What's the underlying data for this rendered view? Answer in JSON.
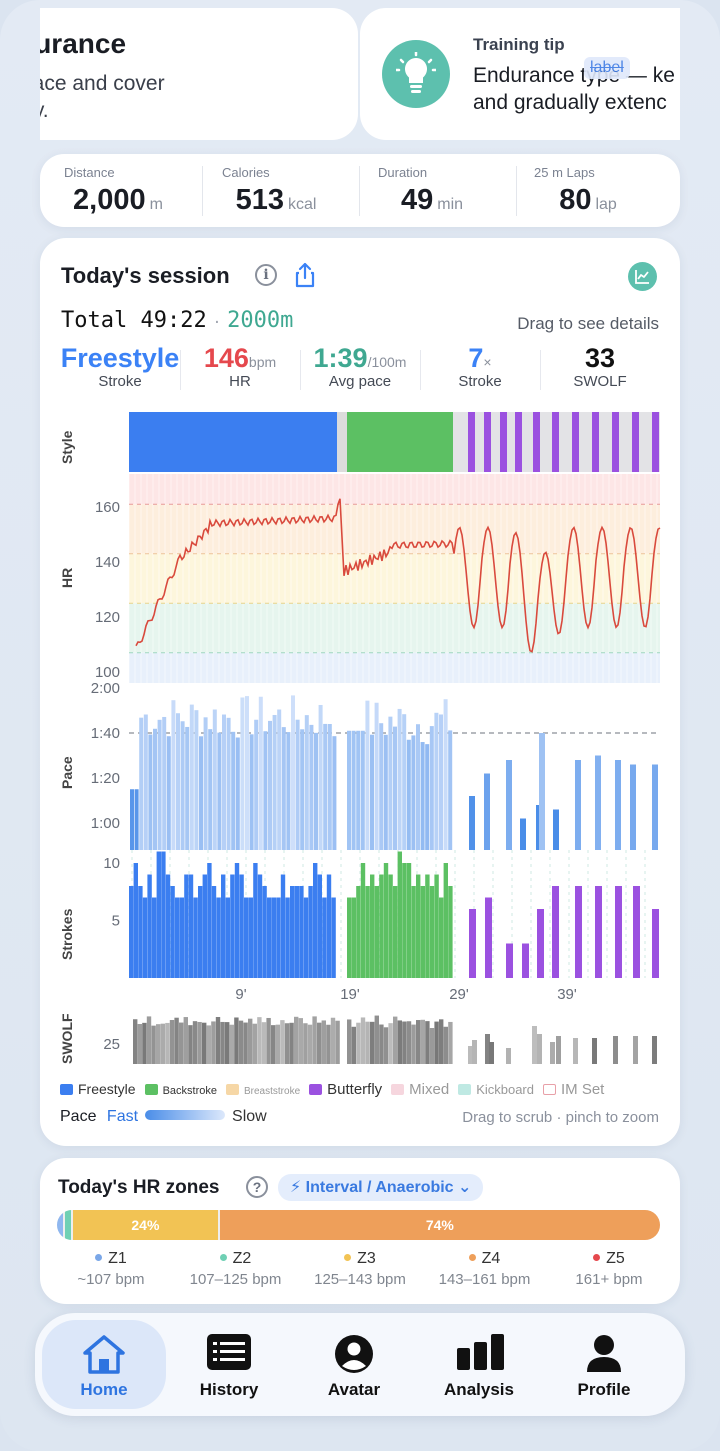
{
  "carousel": {
    "card1": {
      "title": "ndurance",
      "desc": "ly pace and cover\nently."
    },
    "card2": {
      "label": "Training tip",
      "text": "Endurance type — ke\nand gradually extenc",
      "overlay": "label",
      "icon": "lightbulb-icon"
    }
  },
  "stats": [
    {
      "label": "Distance",
      "value": "2,000",
      "unit": "m"
    },
    {
      "label": "Calories",
      "value": "513",
      "unit": "kcal"
    },
    {
      "label": "Duration",
      "value": "49",
      "unit": "min"
    },
    {
      "label": "25 m Laps",
      "value": "80",
      "unit": "lap"
    }
  ],
  "session": {
    "title": "Today's session",
    "info_symbol": "i",
    "total_label": "Total 49:22",
    "separator": "·",
    "total_distance": "2000m",
    "drag_hint": "Drag to see details",
    "metrics": [
      {
        "value": "Freestyle",
        "unit": "",
        "label": "Stroke",
        "color": "#3b82f6"
      },
      {
        "value": "146",
        "unit": "bpm",
        "label": "HR",
        "color": "#e5484d"
      },
      {
        "value": "1:39",
        "unit": "/100m",
        "label": "Avg pace",
        "color": "#3fa891"
      },
      {
        "value": "7",
        "unit": "×",
        "label": "Stroke",
        "color": "#3b82f6"
      },
      {
        "value": "33",
        "unit": "",
        "label": "SWOLF",
        "color": "#111111"
      }
    ],
    "row_labels": {
      "style": "Style",
      "hr": "HR",
      "pace": "Pace",
      "strokes": "Strokes",
      "swolf": "SWOLF"
    },
    "hr_ticks": [
      "160",
      "140",
      "120",
      "100"
    ],
    "pace_ticks": [
      "2:00",
      "1:40",
      "1:20",
      "1:00"
    ],
    "stroke_ticks": [
      "10",
      "5"
    ],
    "swolf_ticks": [
      "25"
    ],
    "time_ticks": [
      "9'",
      "19'",
      "29'",
      "39'"
    ],
    "legend": [
      {
        "label": "Freestyle",
        "color": "#3b7ef0"
      },
      {
        "label": "Backstroke",
        "color": "#5cc063"
      },
      {
        "label": "Breaststroke",
        "color": "#f6d7a6"
      },
      {
        "label": "Butterfly",
        "color": "#9b51e0"
      },
      {
        "label": "Mixed",
        "color": "#f6d6de"
      },
      {
        "label": "Kickboard",
        "color": "#bfe9e3"
      },
      {
        "label": "IM Set",
        "color": "#ffffff"
      }
    ],
    "pace_legend": {
      "label": "Pace",
      "fast": "Fast",
      "slow": "Slow"
    },
    "scrub_hint": "Drag to scrub · pinch to zoom"
  },
  "zones": {
    "title": "Today's HR zones",
    "help_symbol": "?",
    "chip": "⚡ Interval / Anaerobic ⌄",
    "segments": [
      {
        "label": "",
        "pct": 1,
        "color": "#8fb7ef"
      },
      {
        "label": "",
        "pct": 1,
        "color": "#6fd0b4"
      },
      {
        "label": "24%",
        "pct": 24,
        "color": "#f2c354"
      },
      {
        "label": "74%",
        "pct": 74,
        "color": "#ee9f5a"
      }
    ],
    "items": [
      {
        "name": "Z1",
        "range": "~107 bpm",
        "color": "#7aa7e8"
      },
      {
        "name": "Z2",
        "range": "107–125 bpm",
        "color": "#6fd0b4"
      },
      {
        "name": "Z3",
        "range": "125–143 bpm",
        "color": "#f2c354"
      },
      {
        "name": "Z4",
        "range": "143–161 bpm",
        "color": "#ee9f5a"
      },
      {
        "name": "Z5",
        "range": "161+ bpm",
        "color": "#e5484d"
      }
    ]
  },
  "nav": [
    {
      "label": "Home",
      "icon": "home-icon",
      "active": true
    },
    {
      "label": "History",
      "icon": "history-icon",
      "active": false
    },
    {
      "label": "Avatar",
      "icon": "avatar-icon",
      "active": false
    },
    {
      "label": "Analysis",
      "icon": "analysis-icon",
      "active": false
    },
    {
      "label": "Profile",
      "icon": "profile-icon",
      "active": false
    }
  ]
}
